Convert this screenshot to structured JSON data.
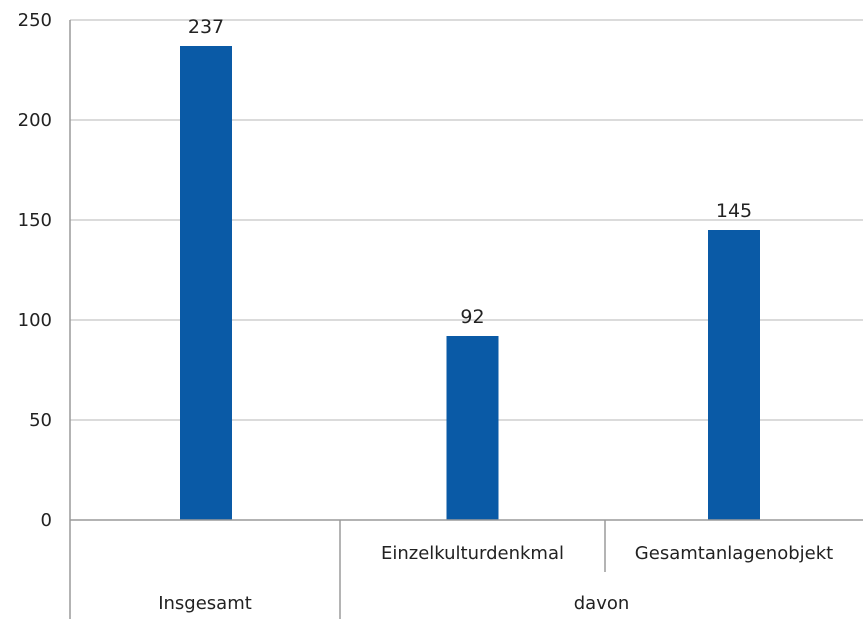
{
  "chart_data": {
    "type": "bar",
    "categories": [
      "Insgesamt",
      "Einzelkulturdenkmal",
      "Gesamtanlagenobjekt"
    ],
    "values": [
      237,
      92,
      145
    ],
    "group_labels": [
      "Insgesamt",
      "davon"
    ],
    "ylim": [
      0,
      250
    ],
    "yticks": [
      0,
      50,
      100,
      150,
      200,
      250
    ],
    "grid": true,
    "bar_color": "#0a5aa6",
    "data_labels": true
  }
}
